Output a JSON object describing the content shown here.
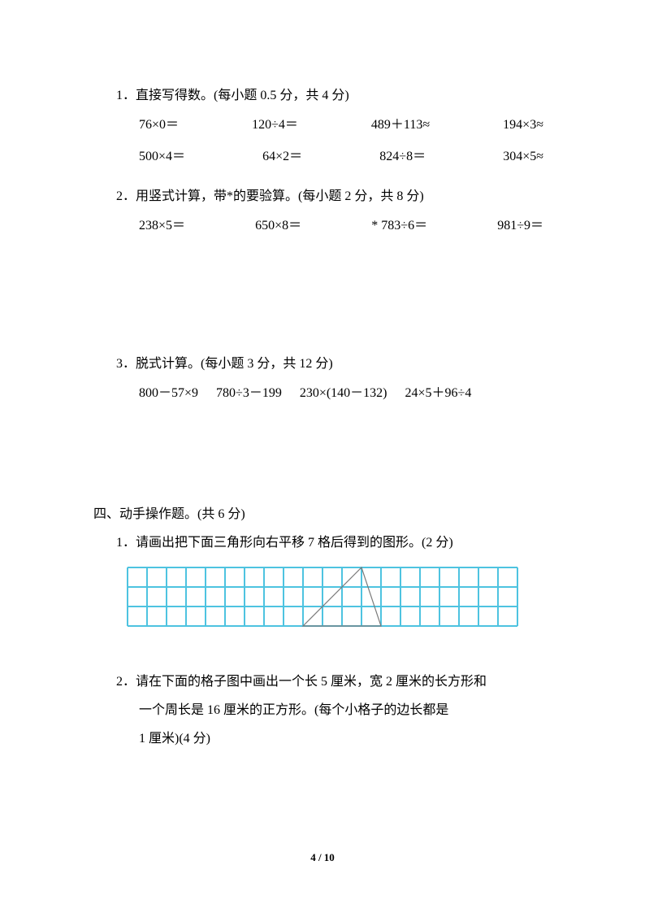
{
  "q1": {
    "heading": "1．直接写得数。(每小题 0.5 分，共 4 分)",
    "row1": [
      "76×0＝",
      "120÷4＝",
      "489＋113≈",
      "194×3≈"
    ],
    "row2": [
      "500×4＝",
      "64×2＝",
      "824÷8＝",
      "304×5≈"
    ]
  },
  "q2": {
    "heading": "2．用竖式计算，带*的要验算。(每小题 2 分，共 8 分)",
    "row1": [
      "238×5＝",
      "650×8＝",
      "* 783÷6＝",
      "981÷9＝"
    ]
  },
  "q3": {
    "heading": "3．脱式计算。(每小题 3 分，共 12 分)",
    "row1": [
      "800－57×9",
      "780÷3－199",
      "230×(140－132)",
      "24×5＋96÷4"
    ]
  },
  "section4": {
    "heading": "四、动手操作题。(共 6 分)",
    "sub1": "1．请画出把下面三角形向右平移 7 格后得到的图形。(2 分)",
    "sub2_line1": "2．请在下面的格子图中画出一个长 5 厘米，宽 2 厘米的长方形和",
    "sub2_line2": "一个周长是 16 厘米的正方形。(每个小格子的边长都是",
    "sub2_line3": "1 厘米)(4 分)"
  },
  "grid": {
    "cols": 20,
    "rows": 3,
    "cell_size": 24,
    "grid_color": "#4ec3e0",
    "grid_stroke": 2,
    "triangle_color": "#7a7a7a",
    "triangle_stroke": 1.2,
    "triangle": {
      "p1_col": 9,
      "p1_row": 3,
      "p2_col": 12,
      "p2_row": 0,
      "p3_col": 13,
      "p3_row": 3
    }
  },
  "page_num": "4 / 10"
}
